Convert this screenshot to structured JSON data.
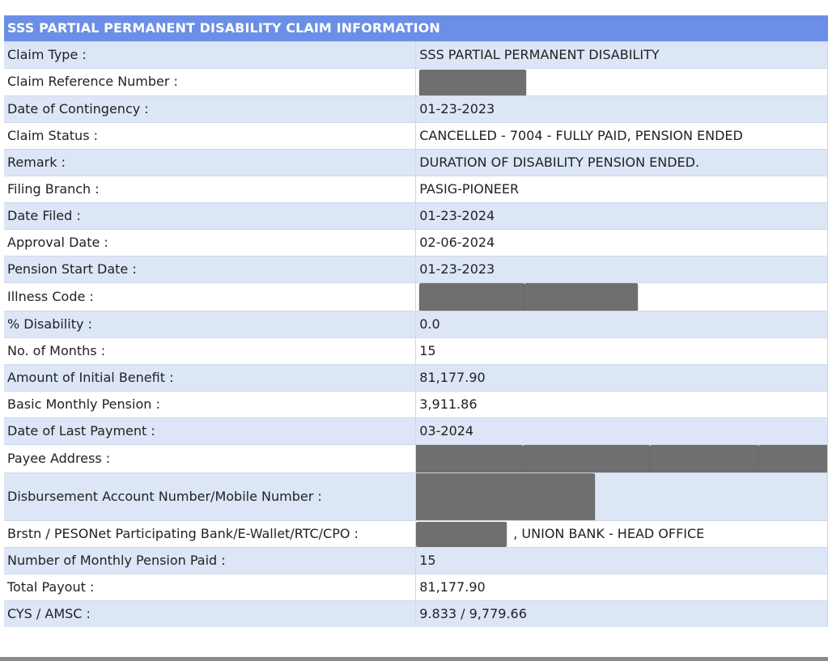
{
  "header": {
    "title": "SSS PARTIAL PERMANENT DISABILITY CLAIM INFORMATION"
  },
  "rows": {
    "claim_type": {
      "label": "Claim Type :",
      "value": "SSS PARTIAL PERMANENT DISABILITY"
    },
    "claim_reference_number": {
      "label": "Claim Reference Number :"
    },
    "date_of_contingency": {
      "label": "Date of Contingency :",
      "value": "01-23-2023"
    },
    "claim_status": {
      "label": "Claim Status :",
      "value": "CANCELLED - 7004 - FULLY PAID, PENSION ENDED"
    },
    "remark": {
      "label": "Remark :",
      "value": "DURATION OF DISABILITY PENSION ENDED."
    },
    "filing_branch": {
      "label": "Filing Branch :",
      "value": "PASIG-PIONEER"
    },
    "date_filed": {
      "label": "Date Filed :",
      "value": "01-23-2024"
    },
    "approval_date": {
      "label": "Approval Date :",
      "value": "02-06-2024"
    },
    "pension_start_date": {
      "label": "Pension Start Date :",
      "value": "01-23-2023"
    },
    "illness_code": {
      "label": "Illness Code :"
    },
    "percent_disability": {
      "label": "% Disability :",
      "value": "0.0"
    },
    "no_of_months": {
      "label": "No. of Months :",
      "value": "15"
    },
    "amount_initial_benefit": {
      "label": "Amount of Initial Benefit :",
      "value": "81,177.90"
    },
    "basic_monthly_pension": {
      "label": "Basic Monthly Pension :",
      "value": "3,911.86"
    },
    "date_last_payment": {
      "label": "Date of Last Payment :",
      "value": "03-2024"
    },
    "payee_address": {
      "label": "Payee Address :"
    },
    "disbursement_account": {
      "label": "Disbursement Account Number/Mobile Number :"
    },
    "bank": {
      "label": "Brstn / PESONet Participating Bank/E-Wallet/RTC/CPO :",
      "value": ", UNION BANK - HEAD OFFICE"
    },
    "monthly_pension_paid": {
      "label": "Number of Monthly Pension Paid :",
      "value": "15"
    },
    "total_payout": {
      "label": "Total Payout :",
      "value": "81,177.90"
    },
    "cys_amsc": {
      "label": "CYS / AMSC :",
      "value": "9.833 / 9,779.66"
    }
  },
  "colors": {
    "header_bg": "#6b8fe6",
    "row_shade": "#dce6f7",
    "redaction": "#6f6f6f"
  }
}
